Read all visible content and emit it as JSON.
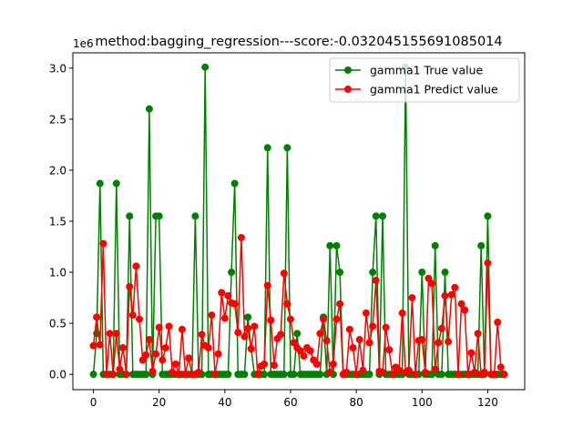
{
  "chart_data": {
    "type": "line",
    "title": "method:bagging_regression---score:-0.032045155691085014",
    "xlabel": "",
    "ylabel": "",
    "y_offset_text": "1e6",
    "xlim": [
      -6.25,
      131.25
    ],
    "ylim": [
      -150000,
      3150000
    ],
    "x_ticks": [
      0,
      20,
      40,
      60,
      80,
      100,
      120
    ],
    "x_tick_labels": [
      "0",
      "20",
      "40",
      "60",
      "80",
      "100",
      "120"
    ],
    "y_ticks": [
      0,
      500000,
      1000000,
      1500000,
      2000000,
      2500000,
      3000000
    ],
    "y_tick_labels": [
      "0.0",
      "0.5",
      "1.0",
      "1.5",
      "2.0",
      "2.5",
      "3.0"
    ],
    "grid": false,
    "legend_position": "top-right",
    "series": [
      {
        "name": "gamma1 True value",
        "color": "#008000",
        "marker": "circle",
        "values": [
          0,
          400000,
          1870000,
          0,
          0,
          0,
          0,
          1870000,
          0,
          0,
          0,
          1550000,
          0,
          0,
          0,
          0,
          0,
          2600000,
          0,
          1550000,
          1550000,
          0,
          0,
          0,
          0,
          0,
          0,
          0,
          0,
          0,
          0,
          1550000,
          0,
          0,
          3010000,
          0,
          0,
          0,
          0,
          0,
          0,
          0,
          1000000,
          1870000,
          0,
          0,
          0,
          560000,
          250000,
          0,
          0,
          0,
          0,
          2220000,
          0,
          0,
          0,
          0,
          0,
          2220000,
          0,
          0,
          400000,
          0,
          0,
          0,
          0,
          0,
          0,
          0,
          560000,
          0,
          1260000,
          0,
          1260000,
          1000000,
          0,
          0,
          0,
          0,
          0,
          0,
          0,
          0,
          0,
          1000000,
          1550000,
          0,
          1550000,
          0,
          0,
          0,
          0,
          0,
          0,
          3010000,
          0,
          0,
          0,
          0,
          1000000,
          0,
          0,
          0,
          1260000,
          0,
          0,
          1000000,
          0,
          0,
          0,
          0,
          0,
          0,
          0,
          0,
          0,
          0,
          1260000,
          0,
          1550000,
          0,
          0,
          0,
          0,
          0
        ]
      },
      {
        "name": "gamma1 Predict value",
        "color": "#ff0000",
        "marker": "circle",
        "values": [
          280000,
          560000,
          290000,
          1280000,
          0,
          400000,
          0,
          400000,
          50000,
          260000,
          0,
          860000,
          580000,
          1060000,
          540000,
          140000,
          190000,
          340000,
          30000,
          200000,
          460000,
          140000,
          260000,
          470000,
          20000,
          100000,
          0,
          440000,
          0,
          160000,
          0,
          0,
          20000,
          390000,
          280000,
          260000,
          580000,
          0,
          200000,
          800000,
          550000,
          770000,
          700000,
          690000,
          410000,
          1340000,
          370000,
          450000,
          250000,
          470000,
          0,
          80000,
          100000,
          870000,
          530000,
          90000,
          350000,
          390000,
          990000,
          690000,
          540000,
          310000,
          260000,
          230000,
          180000,
          260000,
          230000,
          140000,
          100000,
          400000,
          540000,
          330000,
          20000,
          100000,
          540000,
          690000,
          0,
          20000,
          440000,
          260000,
          0,
          340000,
          40000,
          600000,
          310000,
          470000,
          920000,
          30000,
          20000,
          460000,
          240000,
          0,
          70000,
          40000,
          600000,
          20000,
          40000,
          750000,
          0,
          330000,
          340000,
          20000,
          940000,
          890000,
          50000,
          310000,
          450000,
          770000,
          320000,
          780000,
          850000,
          0,
          690000,
          630000,
          0,
          210000,
          20000,
          400000,
          0,
          20000,
          1090000,
          0,
          0,
          510000,
          70000,
          0
        ]
      }
    ]
  }
}
